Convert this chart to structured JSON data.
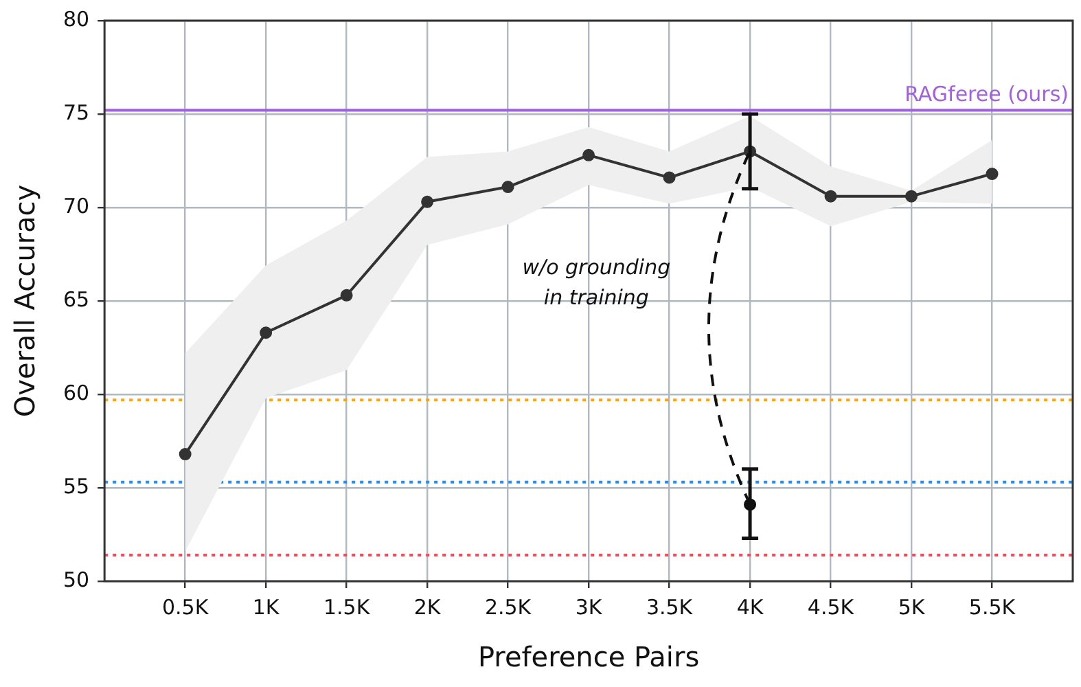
{
  "chart_data": {
    "type": "line",
    "xlabel": "Preference Pairs",
    "ylabel": "Overall Accuracy",
    "xlim": [
      0,
      6
    ],
    "xticks": [
      {
        "value": 0.5,
        "label": "0.5K"
      },
      {
        "value": 1,
        "label": "1K"
      },
      {
        "value": 1.5,
        "label": "1.5K"
      },
      {
        "value": 2,
        "label": "2K"
      },
      {
        "value": 2.5,
        "label": "2.5K"
      },
      {
        "value": 3,
        "label": "3K"
      },
      {
        "value": 3.5,
        "label": "3.5K"
      },
      {
        "value": 4,
        "label": "4K"
      },
      {
        "value": 4.5,
        "label": "4.5K"
      },
      {
        "value": 5,
        "label": "5K"
      },
      {
        "value": 5.5,
        "label": "5.5K"
      }
    ],
    "ylim": [
      50,
      80
    ],
    "yticks": [
      50,
      55,
      60,
      65,
      70,
      75,
      80
    ],
    "grid": true,
    "legend": false,
    "marker": "circle",
    "x": [
      0.5,
      1,
      1.5,
      2,
      2.5,
      3,
      3.5,
      4,
      4.5,
      5,
      5.5
    ],
    "series": [
      {
        "color": "#333333",
        "values": [
          56.8,
          63.3,
          65.3,
          70.3,
          71.1,
          72.8,
          71.6,
          73.0,
          70.6,
          70.6,
          71.8
        ],
        "lower": [
          51.6,
          59.8,
          61.3,
          68.0,
          69.1,
          71.2,
          70.2,
          71.1,
          69.0,
          70.3,
          70.2
        ],
        "upper": [
          62.2,
          66.9,
          69.3,
          72.7,
          73.0,
          74.3,
          73.0,
          74.9,
          72.2,
          70.9,
          73.6
        ],
        "errors": [
          null,
          null,
          null,
          null,
          null,
          null,
          null,
          [
            71.0,
            75.0
          ],
          null,
          null,
          null
        ]
      },
      {
        "type": "scatter",
        "color": "#111111",
        "x": [
          4
        ],
        "values": [
          54.1
        ],
        "errors": [
          [
            52.3,
            56.0
          ]
        ]
      }
    ],
    "ref_lines": [
      {
        "axis": "y",
        "value": 75.2,
        "label": "RAGferee (ours)",
        "color": "#a35ee6",
        "line_style": "solid"
      },
      {
        "axis": "y",
        "value": 59.7,
        "color": "#ffa500",
        "line_style": "dotted"
      },
      {
        "axis": "y",
        "value": 55.3,
        "color": "#1e90ff",
        "line_style": "dotted"
      },
      {
        "axis": "y",
        "value": 51.4,
        "color": "#ff4455",
        "line_style": "dotted"
      }
    ],
    "annotations": [
      "w/o grounding in training"
    ]
  }
}
